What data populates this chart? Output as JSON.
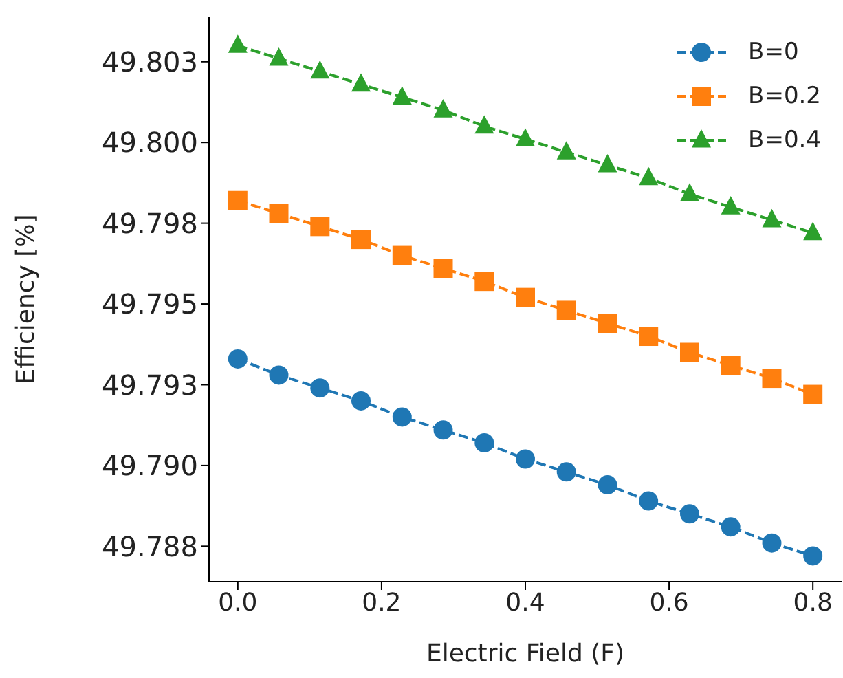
{
  "chart_data": {
    "type": "line",
    "xlabel": "Electric Field (F)",
    "ylabel": "Efficiency [%]",
    "x": [
      0,
      0.0571,
      0.1143,
      0.1714,
      0.2286,
      0.2857,
      0.3429,
      0.4,
      0.4571,
      0.5143,
      0.5714,
      0.6286,
      0.6857,
      0.7429,
      0.8
    ],
    "series": [
      {
        "name": "B=0",
        "color": "#1f77b4",
        "marker": "circle",
        "values": [
          49.7933,
          49.7928,
          49.7924,
          49.792,
          49.7915,
          49.7911,
          49.7907,
          49.7902,
          49.7898,
          49.7894,
          49.7889,
          49.7885,
          49.7881,
          49.7876,
          49.7872
        ]
      },
      {
        "name": "B=0.2",
        "color": "#ff7f0e",
        "marker": "square",
        "values": [
          49.7982,
          49.7978,
          49.7974,
          49.797,
          49.7965,
          49.7961,
          49.7957,
          49.7952,
          49.7948,
          49.7944,
          49.794,
          49.7935,
          49.7931,
          49.7927,
          49.7922
        ]
      },
      {
        "name": "B=0.4",
        "color": "#2ca02c",
        "marker": "triangle",
        "values": [
          49.803,
          49.8026,
          49.8022,
          49.8018,
          49.8014,
          49.801,
          49.8005,
          49.8001,
          49.7997,
          49.7993,
          49.7989,
          49.7984,
          49.798,
          49.7976,
          49.7972
        ]
      }
    ],
    "xlim": [
      -0.04,
      0.84
    ],
    "xticks": [
      {
        "value": 0,
        "label": "0.0"
      },
      {
        "value": 0.2,
        "label": "0.2"
      },
      {
        "value": 0.4,
        "label": "0.4"
      },
      {
        "value": 0.6,
        "label": "0.6"
      },
      {
        "value": 0.8,
        "label": "0.8"
      }
    ],
    "ylim": [
      49.7864,
      49.8039
    ],
    "yticks": [
      {
        "value": 49.7875,
        "label": "49.788"
      },
      {
        "value": 49.79,
        "label": "49.790"
      },
      {
        "value": 49.7925,
        "label": "49.793"
      },
      {
        "value": 49.795,
        "label": "49.795"
      },
      {
        "value": 49.7975,
        "label": "49.798"
      },
      {
        "value": 49.8,
        "label": "49.800"
      },
      {
        "value": 49.8025,
        "label": "49.803"
      }
    ],
    "grid": false,
    "legend": "top right",
    "line_style": "dashed"
  }
}
